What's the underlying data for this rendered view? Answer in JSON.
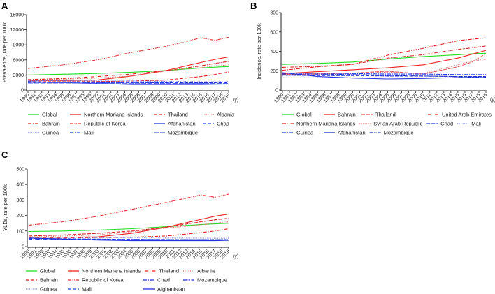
{
  "chart_data": [
    {
      "panel": "A",
      "type": "line",
      "ylabel": "Prevalence, rate per 100k",
      "xunit": "(y)",
      "ylim": [
        0,
        15000
      ],
      "yticks": [
        0,
        3000,
        6000,
        9000,
        12000,
        15000
      ],
      "xticks": [
        1990,
        1991,
        1992,
        1993,
        1994,
        1995,
        1996,
        1997,
        1998,
        1999,
        2000,
        2001,
        2002,
        2003,
        2004,
        2005,
        2006,
        2007,
        2008,
        2009,
        2010,
        2011,
        2012,
        2013,
        2014,
        2015,
        2016,
        2017,
        2018,
        2019
      ],
      "x": [
        1990,
        1995,
        2000,
        2005,
        2010,
        2015,
        2017,
        2019
      ],
      "series": [
        {
          "name": "Global",
          "color": "#22dd22",
          "style": "solid",
          "values": [
            3000,
            3150,
            3300,
            3550,
            3900,
            4400,
            4550,
            4700
          ]
        },
        {
          "name": "Northern Mariana Islands",
          "color": "#ee2222",
          "style": "solid",
          "values": [
            1900,
            1900,
            2000,
            2800,
            3900,
            5500,
            6100,
            6600
          ]
        },
        {
          "name": "Thailand",
          "color": "#ee2222",
          "style": "dash",
          "values": [
            1700,
            1650,
            1700,
            1800,
            2000,
            2700,
            3100,
            3600
          ]
        },
        {
          "name": "Albania",
          "color": "#ee6666",
          "style": "dot",
          "values": [
            2000,
            2200,
            2400,
            2800,
            3800,
            4500,
            4800,
            5000
          ]
        },
        {
          "name": "Bahrain",
          "color": "#dd2222",
          "style": "dashdot",
          "values": [
            2100,
            2300,
            2700,
            3200,
            3900,
            4800,
            5300,
            5700
          ]
        },
        {
          "name": "Republic of Korea",
          "color": "#ee3333",
          "style": "dashdotdot",
          "values": [
            4300,
            5000,
            6000,
            7500,
            8700,
            10400,
            9900,
            10500
          ]
        },
        {
          "name": "Afghanistan",
          "color": "#2233dd",
          "style": "solid",
          "values": [
            1700,
            1500,
            1300,
            1100,
            1100,
            1100,
            1150,
            1200
          ]
        },
        {
          "name": "Chad",
          "color": "#2233dd",
          "style": "dash",
          "values": [
            1500,
            1500,
            1450,
            1450,
            1450,
            1450,
            1450,
            1450
          ]
        },
        {
          "name": "Guinea",
          "color": "#6677ee",
          "style": "dot",
          "values": [
            1900,
            1850,
            1800,
            1800,
            1750,
            1700,
            1650,
            1650
          ]
        },
        {
          "name": "Mali",
          "color": "#2244ee",
          "style": "dashdot",
          "values": [
            1600,
            1550,
            1500,
            1450,
            1400,
            1350,
            1350,
            1350
          ]
        },
        {
          "name": "Mozambique",
          "color": "#5566ee",
          "style": "longdash",
          "values": [
            1400,
            1400,
            1350,
            1350,
            1300,
            1300,
            1300,
            1300
          ]
        }
      ]
    },
    {
      "panel": "B",
      "type": "line",
      "ylabel": "Incidence, rate per 100k",
      "xunit": "(y)",
      "ylim": [
        0,
        800
      ],
      "yticks": [
        0,
        200,
        400,
        600,
        800
      ],
      "xticks": [
        1990,
        1991,
        1992,
        1993,
        1994,
        1995,
        1996,
        1997,
        1998,
        1999,
        2000,
        2001,
        2002,
        2003,
        2004,
        2005,
        2006,
        2007,
        2008,
        2009,
        2010,
        2011,
        2012,
        2013,
        2014,
        2015,
        2016,
        2017,
        2018,
        2019
      ],
      "x": [
        1990,
        1995,
        2000,
        2005,
        2010,
        2015,
        2017,
        2019
      ],
      "series": [
        {
          "name": "Global",
          "color": "#22dd22",
          "style": "solid",
          "values": [
            265,
            275,
            290,
            320,
            345,
            365,
            375,
            380
          ]
        },
        {
          "name": "Bahrain",
          "color": "#ee2222",
          "style": "solid",
          "values": [
            170,
            190,
            210,
            230,
            260,
            330,
            370,
            410
          ]
        },
        {
          "name": "Thailand",
          "color": "#ee5555",
          "style": "dash",
          "values": [
            160,
            165,
            175,
            195,
            165,
            240,
            290,
            375
          ]
        },
        {
          "name": "United Arab Emirates",
          "color": "#ee2222",
          "style": "dashdot",
          "values": [
            205,
            240,
            265,
            360,
            430,
            510,
            525,
            540
          ]
        },
        {
          "name": "Northern Mariana Islands",
          "color": "#dd2222",
          "style": "dashdotdot",
          "values": [
            235,
            245,
            265,
            330,
            365,
            420,
            435,
            455
          ]
        },
        {
          "name": "Syrian Arab Republic",
          "color": "#ee6666",
          "style": "dot",
          "values": [
            165,
            170,
            175,
            185,
            170,
            260,
            300,
            320
          ]
        },
        {
          "name": "Chad",
          "color": "#2233dd",
          "style": "dash",
          "values": [
            155,
            150,
            150,
            145,
            145,
            140,
            140,
            140
          ]
        },
        {
          "name": "Mali",
          "color": "#6677ee",
          "style": "dot",
          "values": [
            150,
            160,
            160,
            155,
            155,
            155,
            155,
            155
          ]
        },
        {
          "name": "Guinea",
          "color": "#2244ee",
          "style": "dashdot",
          "values": [
            175,
            175,
            170,
            165,
            165,
            160,
            160,
            160
          ]
        },
        {
          "name": "Afghanistan",
          "color": "#2233dd",
          "style": "solid",
          "values": [
            180,
            140,
            125,
            115,
            120,
            130,
            130,
            130
          ]
        },
        {
          "name": "Mozambique",
          "color": "#2233cc",
          "style": "dashdotdot",
          "values": [
            165,
            165,
            160,
            150,
            145,
            140,
            135,
            135
          ]
        }
      ]
    },
    {
      "panel": "C",
      "type": "line",
      "ylabel": "YLDs, rate per 100k",
      "xunit": "(y)",
      "ylim": [
        0,
        500
      ],
      "yticks": [
        0,
        100,
        200,
        300,
        400,
        500
      ],
      "xticks": [
        1990,
        1991,
        1992,
        1993,
        1994,
        1995,
        1996,
        1997,
        1998,
        1999,
        2000,
        2001,
        2002,
        2003,
        2004,
        2005,
        2006,
        2007,
        2008,
        2009,
        2010,
        2011,
        2012,
        2013,
        2014,
        2015,
        2016,
        2017,
        2018,
        2019
      ],
      "x": [
        1990,
        1995,
        2000,
        2005,
        2010,
        2015,
        2017,
        2019
      ],
      "series": [
        {
          "name": "Global",
          "color": "#22dd22",
          "style": "solid",
          "values": [
            97,
            100,
            106,
            115,
            128,
            142,
            146,
            150
          ]
        },
        {
          "name": "Northern Mariana Islands",
          "color": "#ee2222",
          "style": "solid",
          "values": [
            60,
            60,
            62,
            85,
            125,
            175,
            195,
            210
          ]
        },
        {
          "name": "Thailand",
          "color": "#ee2222",
          "style": "dashdot",
          "values": [
            55,
            55,
            58,
            60,
            68,
            90,
            100,
            115
          ]
        },
        {
          "name": "Albania",
          "color": "#ee5555",
          "style": "dot",
          "values": [
            62,
            68,
            75,
            95,
            120,
            140,
            150,
            160
          ]
        },
        {
          "name": "Bahrain",
          "color": "#dd2222",
          "style": "dash",
          "values": [
            68,
            75,
            85,
            100,
            125,
            160,
            172,
            182
          ]
        },
        {
          "name": "Republic of Korea",
          "color": "#ee3333",
          "style": "dashdotdot",
          "values": [
            138,
            160,
            195,
            240,
            285,
            333,
            318,
            338
          ]
        },
        {
          "name": "Chad",
          "color": "#2233dd",
          "style": "dashdot",
          "values": [
            48,
            48,
            46,
            46,
            45,
            45,
            45,
            45
          ]
        },
        {
          "name": "Mozambique",
          "color": "#2233cc",
          "style": "dashdotdot",
          "values": [
            45,
            45,
            44,
            43,
            42,
            42,
            42,
            42
          ]
        },
        {
          "name": "Guinea",
          "color": "#8899ee",
          "style": "dot",
          "values": [
            60,
            58,
            57,
            56,
            55,
            54,
            53,
            53
          ]
        },
        {
          "name": "Mali",
          "color": "#2244ee",
          "style": "dash",
          "values": [
            52,
            50,
            48,
            46,
            45,
            44,
            44,
            44
          ]
        },
        {
          "name": "Afghanistan",
          "color": "#2233dd",
          "style": "solid",
          "values": [
            55,
            48,
            42,
            38,
            38,
            38,
            38,
            40
          ]
        }
      ]
    }
  ]
}
